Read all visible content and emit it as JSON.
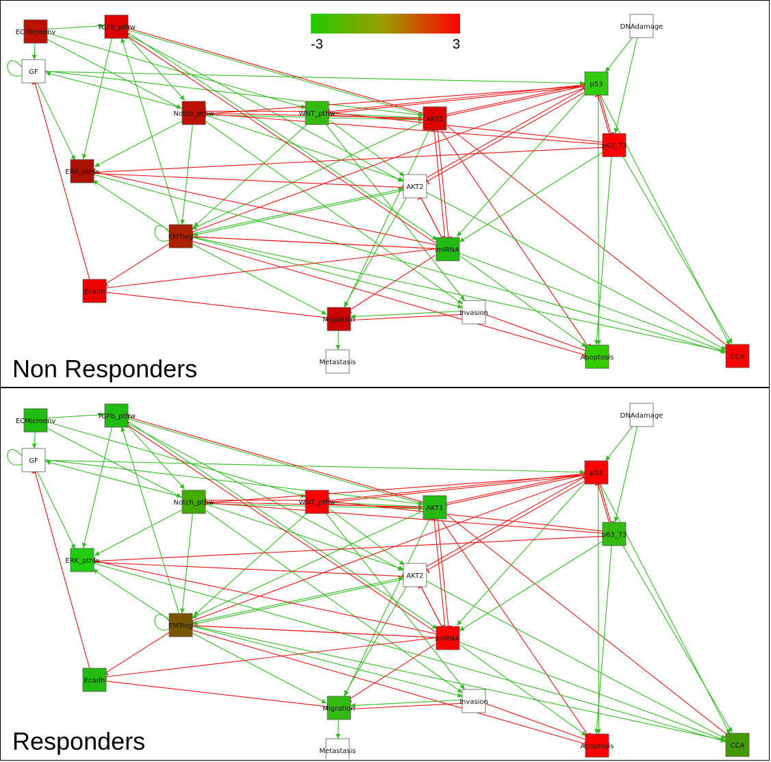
{
  "color_scale": {
    "min_label": "-3",
    "max_label": "3",
    "low_color": "#22cc00",
    "mid_color": "#a09a00",
    "high_color": "#ff0000"
  },
  "colors": {
    "activation_edge": "#33bb22",
    "inhibition_edge": "#ee1111",
    "node_border": "#555555",
    "neutral_node": "#ffffff"
  },
  "panels": [
    {
      "title": "Non Responders",
      "node_colors": {
        "ECMicroenv": "#bb1100",
        "TGFb_pthw": "#dd0000",
        "GF": "#ffffff",
        "DNAdamage": "#ffffff",
        "Notch_pthw": "#bb1100",
        "WNT_pthw": "#33bb11",
        "AKT1": "#dd0000",
        "p53": "#33cc11",
        "p63_73": "#ff0000",
        "ERK_pthw": "#aa1100",
        "AKT2": "#ffffff",
        "EMTreg": "#aa2200",
        "miRNA": "#22bb11",
        "Ecadh": "#ee0000",
        "Migration": "#cc0000",
        "Invasion": "#ffffff",
        "Metastasis": "#ffffff",
        "Apoptosis": "#33cc00",
        "CCA": "#ff0000"
      }
    },
    {
      "title": "Responders",
      "node_colors": {
        "ECMicroenv": "#22bb11",
        "TGFb_pthw": "#22bb11",
        "GF": "#ffffff",
        "DNAdamage": "#ffffff",
        "Notch_pthw": "#44aa00",
        "WNT_pthw": "#ff0000",
        "AKT1": "#22bb11",
        "p53": "#ff0000",
        "p63_73": "#33bb11",
        "ERK_pthw": "#22cc11",
        "AKT2": "#ffffff",
        "EMTreg": "#775500",
        "miRNA": "#ff0000",
        "Ecadh": "#22bb11",
        "Migration": "#33bb11",
        "Invasion": "#ffffff",
        "Metastasis": "#ffffff",
        "Apoptosis": "#ff0000",
        "CCA": "#449900"
      }
    }
  ],
  "nodes": [
    {
      "id": "ECMicroenv",
      "label": "ECMicroenv"
    },
    {
      "id": "TGFb_pthw",
      "label": "TGFb_pthw"
    },
    {
      "id": "GF",
      "label": "GF"
    },
    {
      "id": "DNAdamage",
      "label": "DNAdamage"
    },
    {
      "id": "Notch_pthw",
      "label": "Notch_pthw"
    },
    {
      "id": "WNT_pthw",
      "label": "WNT_pthw"
    },
    {
      "id": "AKT1",
      "label": "AKT1"
    },
    {
      "id": "p53",
      "label": "p53"
    },
    {
      "id": "p63_73",
      "label": "p63_73"
    },
    {
      "id": "ERK_pthw",
      "label": "ERK_pthw"
    },
    {
      "id": "AKT2",
      "label": "AKT2"
    },
    {
      "id": "EMTreg",
      "label": "EMTreg"
    },
    {
      "id": "miRNA",
      "label": "miRNA"
    },
    {
      "id": "Ecadh",
      "label": "Ecadh"
    },
    {
      "id": "Migration",
      "label": "Migration"
    },
    {
      "id": "Invasion",
      "label": "Invasion"
    },
    {
      "id": "Metastasis",
      "label": "Metastasis"
    },
    {
      "id": "Apoptosis",
      "label": "Apoptosis"
    },
    {
      "id": "CCA",
      "label": "CCA"
    }
  ],
  "edges": [
    {
      "from": "ECMicroenv",
      "to": "TGFb_pthw",
      "type": "activation"
    },
    {
      "from": "ECMicroenv",
      "to": "GF",
      "type": "activation"
    },
    {
      "from": "ECMicroenv",
      "to": "Notch_pthw",
      "type": "activation"
    },
    {
      "from": "ECMicroenv",
      "to": "WNT_pthw",
      "type": "activation"
    },
    {
      "from": "GF",
      "to": "GF",
      "type": "activation"
    },
    {
      "from": "GF",
      "to": "ERK_pthw",
      "type": "activation"
    },
    {
      "from": "GF",
      "to": "AKT1",
      "type": "activation"
    },
    {
      "from": "GF",
      "to": "p53",
      "type": "activation"
    },
    {
      "from": "TGFb_pthw",
      "to": "ERK_pthw",
      "type": "activation"
    },
    {
      "from": "TGFb_pthw",
      "to": "Notch_pthw",
      "type": "activation"
    },
    {
      "from": "TGFb_pthw",
      "to": "AKT1",
      "type": "activation"
    },
    {
      "from": "TGFb_pthw",
      "to": "AKT2",
      "type": "activation"
    },
    {
      "from": "TGFb_pthw",
      "to": "miRNA",
      "type": "activation"
    },
    {
      "from": "DNAdamage",
      "to": "p53",
      "type": "activation"
    },
    {
      "from": "DNAdamage",
      "to": "p63_73",
      "type": "activation"
    },
    {
      "from": "Notch_pthw",
      "to": "ERK_pthw",
      "type": "activation"
    },
    {
      "from": "Notch_pthw",
      "to": "EMTreg",
      "type": "activation"
    },
    {
      "from": "Notch_pthw",
      "to": "AKT1",
      "type": "activation"
    },
    {
      "from": "Notch_pthw",
      "to": "AKT2",
      "type": "activation"
    },
    {
      "from": "Notch_pthw",
      "to": "Invasion",
      "type": "activation"
    },
    {
      "from": "Notch_pthw",
      "to": "GF",
      "type": "activation"
    },
    {
      "from": "WNT_pthw",
      "to": "EMTreg",
      "type": "activation"
    },
    {
      "from": "WNT_pthw",
      "to": "AKT1",
      "type": "activation"
    },
    {
      "from": "WNT_pthw",
      "to": "Notch_pthw",
      "type": "inhibition"
    },
    {
      "from": "WNT_pthw",
      "to": "AKT2",
      "type": "activation"
    },
    {
      "from": "WNT_pthw",
      "to": "Invasion",
      "type": "activation"
    },
    {
      "from": "WNT_pthw",
      "to": "p53",
      "type": "inhibition"
    },
    {
      "from": "AKT1",
      "to": "WNT_pthw",
      "type": "inhibition"
    },
    {
      "from": "AKT1",
      "to": "Notch_pthw",
      "type": "inhibition"
    },
    {
      "from": "AKT1",
      "to": "EMTreg",
      "type": "activation"
    },
    {
      "from": "AKT1",
      "to": "miRNA",
      "type": "inhibition"
    },
    {
      "from": "AKT1",
      "to": "Migration",
      "type": "activation"
    },
    {
      "from": "AKT1",
      "to": "Apoptosis",
      "type": "inhibition"
    },
    {
      "from": "AKT1",
      "to": "CCA",
      "type": "inhibition"
    },
    {
      "from": "AKT1",
      "to": "p53",
      "type": "inhibition"
    },
    {
      "from": "AKT1",
      "to": "TGFb_pthw",
      "type": "inhibition"
    },
    {
      "from": "p53",
      "to": "Notch_pthw",
      "type": "inhibition"
    },
    {
      "from": "p53",
      "to": "WNT_pthw",
      "type": "inhibition"
    },
    {
      "from": "p53",
      "to": "AKT1",
      "type": "inhibition"
    },
    {
      "from": "p53",
      "to": "AKT2",
      "type": "inhibition"
    },
    {
      "from": "p53",
      "to": "EMTreg",
      "type": "inhibition"
    },
    {
      "from": "p53",
      "to": "miRNA",
      "type": "activation"
    },
    {
      "from": "p53",
      "to": "Apoptosis",
      "type": "activation"
    },
    {
      "from": "p53",
      "to": "p63_73",
      "type": "inhibition"
    },
    {
      "from": "p53",
      "to": "CCA",
      "type": "activation"
    },
    {
      "from": "p63_73",
      "to": "p53",
      "type": "inhibition"
    },
    {
      "from": "p63_73",
      "to": "Notch_pthw",
      "type": "inhibition"
    },
    {
      "from": "p63_73",
      "to": "WNT_pthw",
      "type": "inhibition"
    },
    {
      "from": "p63_73",
      "to": "ERK_pthw",
      "type": "inhibition"
    },
    {
      "from": "p63_73",
      "to": "miRNA",
      "type": "activation"
    },
    {
      "from": "p63_73",
      "to": "Apoptosis",
      "type": "activation"
    },
    {
      "from": "p63_73",
      "to": "CCA",
      "type": "activation"
    },
    {
      "from": "ERK_pthw",
      "to": "CCA",
      "type": "activation"
    },
    {
      "from": "ERK_pthw",
      "to": "AKT2",
      "type": "inhibition"
    },
    {
      "from": "AKT2",
      "to": "EMTreg",
      "type": "activation"
    },
    {
      "from": "AKT2",
      "to": "miRNA",
      "type": "inhibition"
    },
    {
      "from": "AKT2",
      "to": "Migration",
      "type": "activation"
    },
    {
      "from": "AKT2",
      "to": "p53",
      "type": "inhibition"
    },
    {
      "from": "AKT2",
      "to": "CCA",
      "type": "activation"
    },
    {
      "from": "EMTreg",
      "to": "EMTreg",
      "type": "activation"
    },
    {
      "from": "EMTreg",
      "to": "ERK_pthw",
      "type": "activation"
    },
    {
      "from": "EMTreg",
      "to": "Ecadh",
      "type": "inhibition"
    },
    {
      "from": "EMTreg",
      "to": "Migration",
      "type": "activation"
    },
    {
      "from": "EMTreg",
      "to": "Invasion",
      "type": "activation"
    },
    {
      "from": "EMTreg",
      "to": "AKT2",
      "type": "activation"
    },
    {
      "from": "EMTreg",
      "to": "Apoptosis",
      "type": "inhibition"
    },
    {
      "from": "EMTreg",
      "to": "CCA",
      "type": "activation"
    },
    {
      "from": "EMTreg",
      "to": "miRNA",
      "type": "inhibition"
    },
    {
      "from": "EMTreg",
      "to": "TGFb_pthw",
      "type": "activation"
    },
    {
      "from": "miRNA",
      "to": "TGFb_pthw",
      "type": "inhibition"
    },
    {
      "from": "miRNA",
      "to": "EMTreg",
      "type": "inhibition"
    },
    {
      "from": "miRNA",
      "to": "ERK_pthw",
      "type": "inhibition"
    },
    {
      "from": "miRNA",
      "to": "AKT1",
      "type": "inhibition"
    },
    {
      "from": "miRNA",
      "to": "AKT2",
      "type": "inhibition"
    },
    {
      "from": "miRNA",
      "to": "Migration",
      "type": "inhibition"
    },
    {
      "from": "miRNA",
      "to": "Apoptosis",
      "type": "activation"
    },
    {
      "from": "miRNA",
      "to": "CCA",
      "type": "activation"
    },
    {
      "from": "miRNA",
      "to": "Ecadh",
      "type": "inhibition"
    },
    {
      "from": "Ecadh",
      "to": "GF",
      "type": "inhibition"
    },
    {
      "from": "Ecadh",
      "to": "Migration",
      "type": "inhibition"
    },
    {
      "from": "Invasion",
      "to": "Migration",
      "type": "activation"
    },
    {
      "from": "Invasion",
      "to": "Apoptosis",
      "type": "inhibition"
    },
    {
      "from": "Migration",
      "to": "Metastasis",
      "type": "activation"
    },
    {
      "from": "Migration",
      "to": "Invasion",
      "type": "inhibition"
    }
  ]
}
